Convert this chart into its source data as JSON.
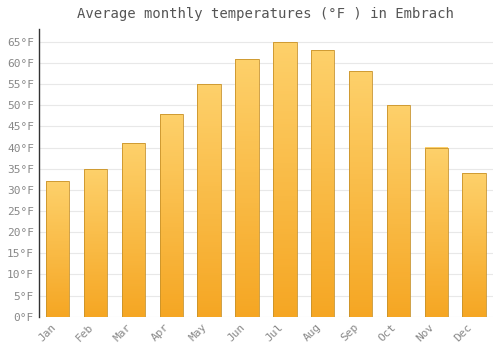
{
  "title": "Average monthly temperatures (°F ) in Embrach",
  "months": [
    "Jan",
    "Feb",
    "Mar",
    "Apr",
    "May",
    "Jun",
    "Jul",
    "Aug",
    "Sep",
    "Oct",
    "Nov",
    "Dec"
  ],
  "values": [
    32,
    35,
    41,
    48,
    55,
    61,
    65,
    63,
    58,
    50,
    40,
    34
  ],
  "bar_color_bottom": "#F5A623",
  "bar_color_top": "#FDD06A",
  "bar_edge_color": "#C8922A",
  "ylim": [
    0,
    68
  ],
  "yticks": [
    0,
    5,
    10,
    15,
    20,
    25,
    30,
    35,
    40,
    45,
    50,
    55,
    60,
    65
  ],
  "ytick_labels": [
    "0°F",
    "5°F",
    "10°F",
    "15°F",
    "20°F",
    "25°F",
    "30°F",
    "35°F",
    "40°F",
    "45°F",
    "50°F",
    "55°F",
    "60°F",
    "65°F"
  ],
  "title_fontsize": 10,
  "tick_fontsize": 8,
  "bg_color": "#ffffff",
  "grid_color": "#e8e8e8",
  "grid_linewidth": 0.8,
  "bar_width": 0.62,
  "n_gradient_steps": 100
}
